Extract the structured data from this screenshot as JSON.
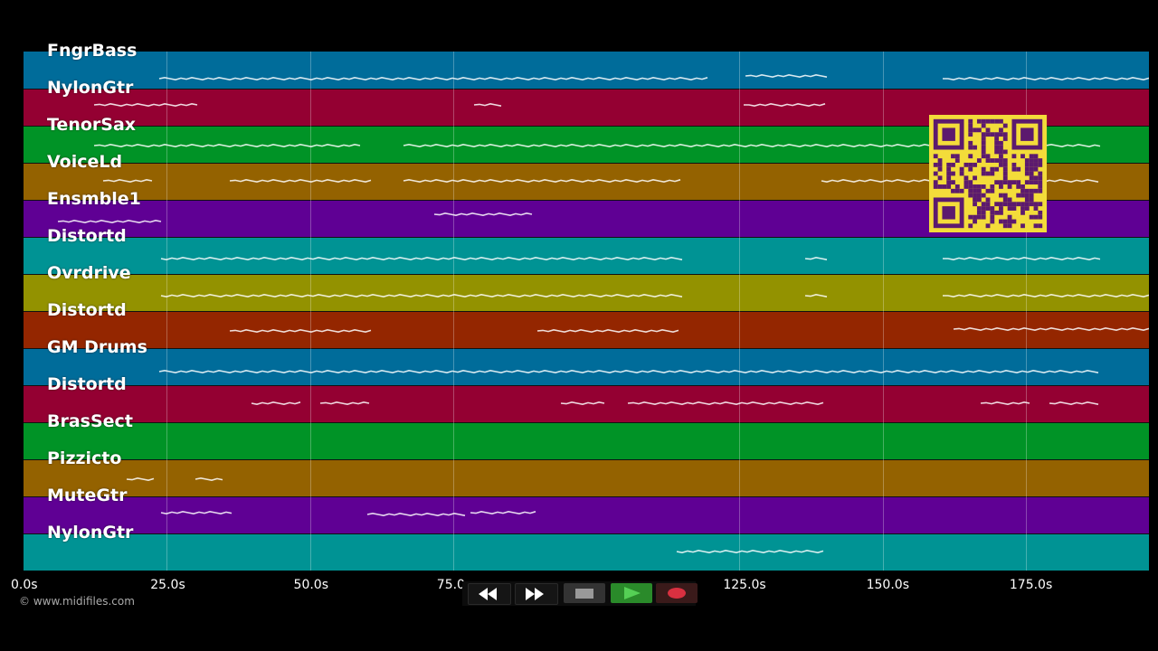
{
  "app": {
    "copyright": "© www.midifiles.com"
  },
  "tracks": [
    {
      "label": "FngrBass",
      "color": "#006c9a"
    },
    {
      "label": "NylonGtr",
      "color": "#940032"
    },
    {
      "label": "TenorSax",
      "color": "#009326"
    },
    {
      "label": "VoiceLd",
      "color": "#946200"
    },
    {
      "label": "Ensmble1",
      "color": "#5f0094"
    },
    {
      "label": "Distortd",
      "color": "#009394"
    },
    {
      "label": "Ovrdrive",
      "color": "#939200"
    },
    {
      "label": "Distortd",
      "color": "#942600"
    },
    {
      "label": "GM Drums",
      "color": "#006c9a"
    },
    {
      "label": "Distortd",
      "color": "#940032"
    },
    {
      "label": "BrasSect",
      "color": "#009326"
    },
    {
      "label": "Pizzicto",
      "color": "#946200"
    },
    {
      "label": "MuteGtr",
      "color": "#5f0094"
    },
    {
      "label": "NylonGtr",
      "color": "#009394"
    }
  ],
  "timeline": {
    "ticks": [
      "0.0s",
      "25.0s",
      "50.0s",
      "75.0s",
      "125.0s",
      "150.0s",
      "175.0s"
    ],
    "tick_seconds": [
      0,
      25,
      50,
      75,
      125,
      150,
      175
    ]
  },
  "transport": {
    "rewind_icon": "rewind-icon",
    "fastforward_icon": "fast-forward-icon",
    "stop_icon": "stop-icon",
    "play_icon": "play-icon",
    "record_icon": "record-icon",
    "play_color": "#2a8a2a",
    "record_color": "#d83040"
  },
  "qr_icon": "qr-code-icon"
}
